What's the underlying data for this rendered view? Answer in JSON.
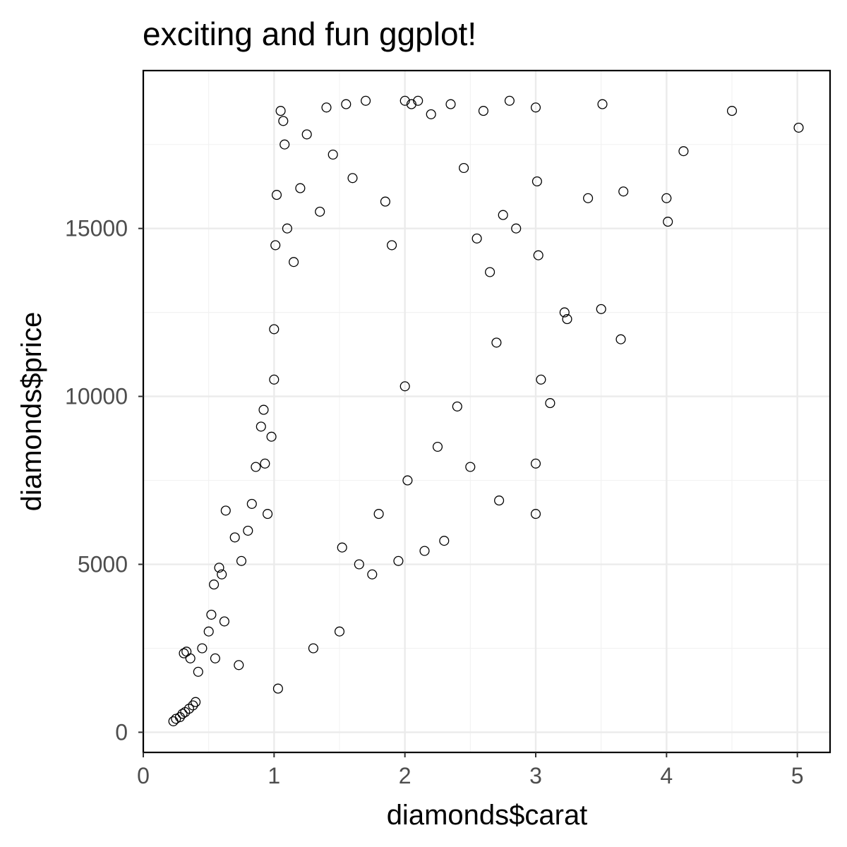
{
  "chart_data": {
    "type": "scatter",
    "title": "exciting and fun ggplot!",
    "xlabel": "diamonds$carat",
    "ylabel": "diamonds$price",
    "xlim": [
      0,
      5.25
    ],
    "ylim": [
      -600,
      19700
    ],
    "x_ticks": [
      0,
      1,
      2,
      3,
      4,
      5
    ],
    "y_ticks": [
      0,
      5000,
      10000,
      15000
    ],
    "grid": true,
    "legend": "none",
    "marker": "open-circle",
    "colors": {
      "points": "#000000",
      "grid": "#ebebeb",
      "tick_labels": "#4d4d4d"
    },
    "points": [
      [
        0.23,
        326
      ],
      [
        0.25,
        400
      ],
      [
        0.28,
        450
      ],
      [
        0.3,
        550
      ],
      [
        0.32,
        600
      ],
      [
        0.35,
        700
      ],
      [
        0.38,
        800
      ],
      [
        0.4,
        900
      ],
      [
        0.31,
        2350
      ],
      [
        0.33,
        2400
      ],
      [
        0.36,
        2200
      ],
      [
        0.42,
        1800
      ],
      [
        0.45,
        2500
      ],
      [
        0.5,
        3000
      ],
      [
        0.52,
        3500
      ],
      [
        0.54,
        4400
      ],
      [
        0.55,
        2200
      ],
      [
        0.58,
        4900
      ],
      [
        0.6,
        4700
      ],
      [
        0.62,
        3300
      ],
      [
        0.63,
        6600
      ],
      [
        0.7,
        5800
      ],
      [
        0.73,
        2000
      ],
      [
        0.75,
        5100
      ],
      [
        0.8,
        6000
      ],
      [
        0.83,
        6800
      ],
      [
        0.86,
        7900
      ],
      [
        0.9,
        9100
      ],
      [
        0.92,
        9600
      ],
      [
        0.93,
        8000
      ],
      [
        0.95,
        6500
      ],
      [
        0.98,
        8800
      ],
      [
        1.0,
        12000
      ],
      [
        1.0,
        10500
      ],
      [
        1.01,
        14500
      ],
      [
        1.02,
        16000
      ],
      [
        1.03,
        1300
      ],
      [
        1.05,
        18500
      ],
      [
        1.07,
        18200
      ],
      [
        1.08,
        17500
      ],
      [
        1.1,
        15000
      ],
      [
        1.15,
        14000
      ],
      [
        1.2,
        16200
      ],
      [
        1.25,
        17800
      ],
      [
        1.3,
        2500
      ],
      [
        1.35,
        15500
      ],
      [
        1.4,
        18600
      ],
      [
        1.45,
        17200
      ],
      [
        1.5,
        3000
      ],
      [
        1.52,
        5500
      ],
      [
        1.55,
        18700
      ],
      [
        1.6,
        16500
      ],
      [
        1.65,
        5000
      ],
      [
        1.7,
        18800
      ],
      [
        1.75,
        4700
      ],
      [
        1.8,
        6500
      ],
      [
        1.85,
        15800
      ],
      [
        1.9,
        14500
      ],
      [
        1.95,
        5100
      ],
      [
        2.0,
        18800
      ],
      [
        2.0,
        10300
      ],
      [
        2.02,
        7500
      ],
      [
        2.05,
        18700
      ],
      [
        2.1,
        18800
      ],
      [
        2.15,
        5400
      ],
      [
        2.2,
        18400
      ],
      [
        2.25,
        8500
      ],
      [
        2.3,
        5700
      ],
      [
        2.35,
        18700
      ],
      [
        2.4,
        9700
      ],
      [
        2.45,
        16800
      ],
      [
        2.5,
        7900
      ],
      [
        2.55,
        14700
      ],
      [
        2.6,
        18500
      ],
      [
        2.65,
        13700
      ],
      [
        2.7,
        11600
      ],
      [
        2.72,
        6900
      ],
      [
        2.75,
        15400
      ],
      [
        2.8,
        18800
      ],
      [
        2.85,
        15000
      ],
      [
        3.0,
        18600
      ],
      [
        3.0,
        8000
      ],
      [
        3.0,
        6500
      ],
      [
        3.01,
        16400
      ],
      [
        3.02,
        14200
      ],
      [
        3.04,
        10500
      ],
      [
        3.11,
        9800
      ],
      [
        3.22,
        12500
      ],
      [
        3.24,
        12300
      ],
      [
        3.4,
        15900
      ],
      [
        3.5,
        12600
      ],
      [
        3.51,
        18700
      ],
      [
        3.65,
        11700
      ],
      [
        3.67,
        16100
      ],
      [
        4.0,
        15900
      ],
      [
        4.01,
        15200
      ],
      [
        4.13,
        17300
      ],
      [
        4.5,
        18500
      ],
      [
        5.01,
        18000
      ]
    ]
  }
}
